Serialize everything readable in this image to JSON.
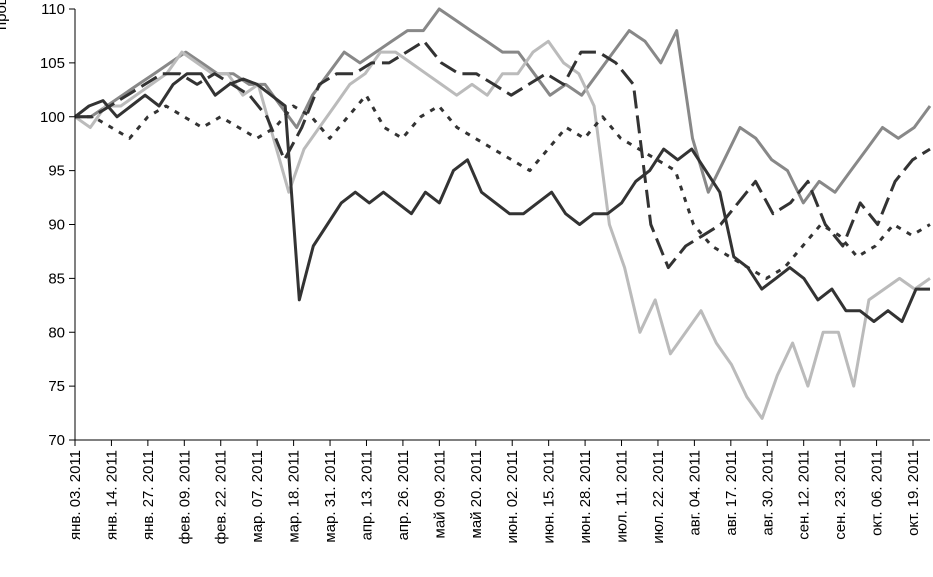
{
  "chart_data": {
    "type": "line",
    "ylabel": "проценты",
    "ylim": [
      70,
      110
    ],
    "yticks": [
      70,
      75,
      80,
      85,
      90,
      95,
      100,
      105,
      110
    ],
    "x_tick_labels": [
      "янв. 03. 2011",
      "янв. 14. 2011",
      "янв. 27. 2011",
      "фев. 09. 2011",
      "фев. 22. 2011",
      "мар. 07. 2011",
      "мар. 18. 2011",
      "мар. 31. 2011",
      "апр. 13. 2011",
      "апр. 26. 2011",
      "май 09. 2011",
      "май 20. 2011",
      "июн. 02. 2011",
      "июн. 15. 2011",
      "июн. 28. 2011",
      "июл. 11. 2011",
      "июл. 22. 2011",
      "авг. 04. 2011",
      "авг. 17. 2011",
      "авг. 30. 2011",
      "сен. 12. 2011",
      "сен. 23. 2011",
      "окт. 06. 2011",
      "окт. 19. 2011"
    ],
    "grid": false,
    "series": [
      {
        "style": "dark-solid",
        "color": "#333333",
        "values": [
          100,
          101,
          101.5,
          100,
          101,
          102,
          101,
          103,
          104,
          104,
          102,
          103,
          103.5,
          103,
          102,
          101,
          83,
          88,
          90,
          92,
          93,
          92,
          93,
          92,
          91,
          93,
          92,
          95,
          96,
          93,
          92,
          91,
          91,
          92,
          93,
          91,
          90,
          91,
          91,
          92,
          94,
          95,
          97,
          96,
          97,
          95,
          93,
          87,
          86,
          84,
          85,
          86,
          85,
          83,
          84,
          82,
          82,
          81,
          82,
          81,
          84,
          84
        ]
      },
      {
        "style": "mid-gray-solid",
        "color": "#888888",
        "values": [
          100,
          100,
          101,
          102,
          103,
          104,
          105,
          106,
          105,
          104,
          104,
          103,
          103,
          101,
          99,
          102,
          104,
          106,
          105,
          106,
          107,
          108,
          108,
          110,
          109,
          108,
          107,
          106,
          106,
          104,
          102,
          103,
          102,
          104,
          106,
          108,
          107,
          105,
          108,
          98,
          93,
          96,
          99,
          98,
          96,
          95,
          92,
          94,
          93,
          95,
          97,
          99,
          98,
          99,
          101
        ]
      },
      {
        "style": "light-gray-solid",
        "color": "#bbbbbb",
        "values": [
          100,
          99,
          101,
          101,
          102,
          103,
          104,
          106,
          105,
          104,
          104,
          102,
          103,
          98,
          93,
          97,
          99,
          101,
          103,
          104,
          106,
          106,
          105,
          104,
          103,
          102,
          103,
          102,
          104,
          104,
          106,
          107,
          105,
          104,
          101,
          90,
          86,
          80,
          83,
          78,
          80,
          82,
          79,
          77,
          74,
          72,
          76,
          79,
          75,
          80,
          80,
          75,
          83,
          84,
          85,
          84,
          85
        ]
      },
      {
        "style": "dark-dashed",
        "color": "#333333",
        "values": [
          100,
          100,
          101,
          102,
          103,
          104,
          104,
          103,
          104,
          103,
          102,
          100,
          96,
          99,
          103,
          104,
          104,
          105,
          105,
          106,
          107,
          105,
          104,
          104,
          103,
          102,
          103,
          104,
          103,
          106,
          106,
          105,
          103,
          90,
          86,
          88,
          89,
          90,
          92,
          94,
          91,
          92,
          94,
          90,
          88,
          92,
          90,
          94,
          96,
          97
        ]
      },
      {
        "style": "dark-dotted",
        "color": "#333333",
        "values": [
          100,
          100,
          99,
          98,
          100,
          101,
          100,
          99,
          100,
          99,
          98,
          99,
          101,
          100,
          98,
          100,
          102,
          99,
          98,
          100,
          101,
          99,
          98,
          97,
          96,
          95,
          97,
          99,
          98,
          100,
          98,
          97,
          96,
          95,
          90,
          88,
          87,
          86,
          85,
          86,
          88,
          90,
          89,
          87,
          88,
          90,
          89,
          90
        ]
      }
    ]
  }
}
